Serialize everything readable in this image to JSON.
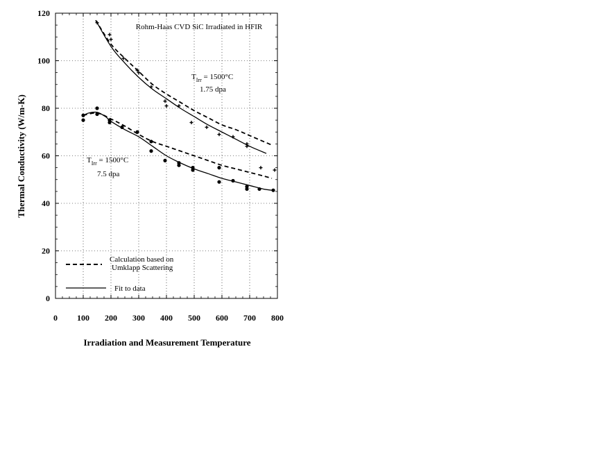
{
  "chart_data": {
    "type": "line",
    "title": "Rohm-Haas CVD SiC Irradiated in HFIR",
    "xlabel": "Irradiation and Measurement Temperature",
    "ylabel": "Thermal Conductivity (W/m-K)",
    "xlim": [
      0,
      800
    ],
    "ylim": [
      0,
      120
    ],
    "x_ticks": [
      "0",
      "100",
      "200",
      "300",
      "400",
      "500",
      "600",
      "700",
      "800"
    ],
    "y_ticks": [
      "0",
      "20",
      "40",
      "60",
      "80",
      "100",
      "120"
    ],
    "grid": true,
    "legend_position": "bottom-left",
    "legend": [
      {
        "label_line1": "Calculation based on",
        "label_line2": "Umklapp Scattering",
        "style": "dashed"
      },
      {
        "label_line1": "Fit to data",
        "label_line2": "",
        "style": "solid"
      }
    ],
    "annotations": [
      {
        "T": "T",
        "sub": "Irr",
        "value": " = 1500°C",
        "dose": "1.75 dpa"
      },
      {
        "T": "T",
        "sub": "Irr",
        "value": " = 1500°C",
        "dose": "7.5 dpa"
      }
    ],
    "series": [
      {
        "name": "1.75 dpa calculation",
        "style": "dashed",
        "x": [
          145,
          200,
          250,
          300,
          350,
          400,
          450,
          500,
          550,
          600,
          650,
          700,
          750,
          780
        ],
        "y": [
          117,
          107,
          101,
          95.5,
          90,
          86,
          82.5,
          79,
          76,
          73,
          71,
          68.5,
          66,
          64.5
        ]
      },
      {
        "name": "1.75 dpa fit",
        "style": "solid",
        "x": [
          145,
          200,
          250,
          300,
          350,
          400,
          450,
          500,
          550,
          600,
          650,
          700,
          760
        ],
        "y": [
          117,
          106,
          99,
          93,
          88,
          84,
          80,
          76.5,
          73,
          70,
          67,
          64,
          61
        ]
      },
      {
        "name": "7.5 dpa calculation",
        "style": "dashed",
        "x": [
          100,
          150,
          200,
          250,
          300,
          350,
          400,
          450,
          500,
          550,
          600,
          650,
          700,
          750,
          780
        ],
        "y": [
          77,
          78,
          75.5,
          72.5,
          69,
          66,
          64,
          62,
          60,
          58,
          56,
          54.5,
          53,
          51.5,
          50.5
        ]
      },
      {
        "name": "7.5 dpa fit",
        "style": "solid",
        "x": [
          100,
          120,
          150,
          180,
          200,
          250,
          300,
          350,
          400,
          450,
          500,
          550,
          600,
          650,
          700,
          750,
          780
        ],
        "y": [
          77,
          78,
          78.3,
          76.5,
          74.5,
          71,
          68,
          64,
          60,
          57,
          54.5,
          52.5,
          50.5,
          49,
          47.5,
          46,
          45.5
        ]
      }
    ],
    "points_175dpa": {
      "marker": "cross",
      "x": [
        150,
        195,
        200,
        245,
        295,
        300,
        345,
        395,
        400,
        445,
        490,
        545,
        590,
        640,
        690,
        690,
        740,
        790
      ],
      "y": [
        116,
        111,
        109,
        101,
        96,
        95,
        89,
        83,
        81,
        81,
        74,
        72,
        69,
        68,
        65,
        64,
        55,
        54
      ]
    },
    "points_75dpa": {
      "marker": "dot",
      "x": [
        100,
        100,
        150,
        150,
        195,
        195,
        240,
        295,
        345,
        345,
        395,
        445,
        445,
        495,
        495,
        590,
        590,
        640,
        690,
        690,
        735,
        785
      ],
      "y": [
        77,
        75,
        80,
        77.5,
        75,
        74,
        72,
        70,
        66,
        62,
        58,
        57,
        56,
        55,
        54,
        55,
        49,
        49.5,
        47,
        46,
        46,
        45.5
      ]
    }
  }
}
